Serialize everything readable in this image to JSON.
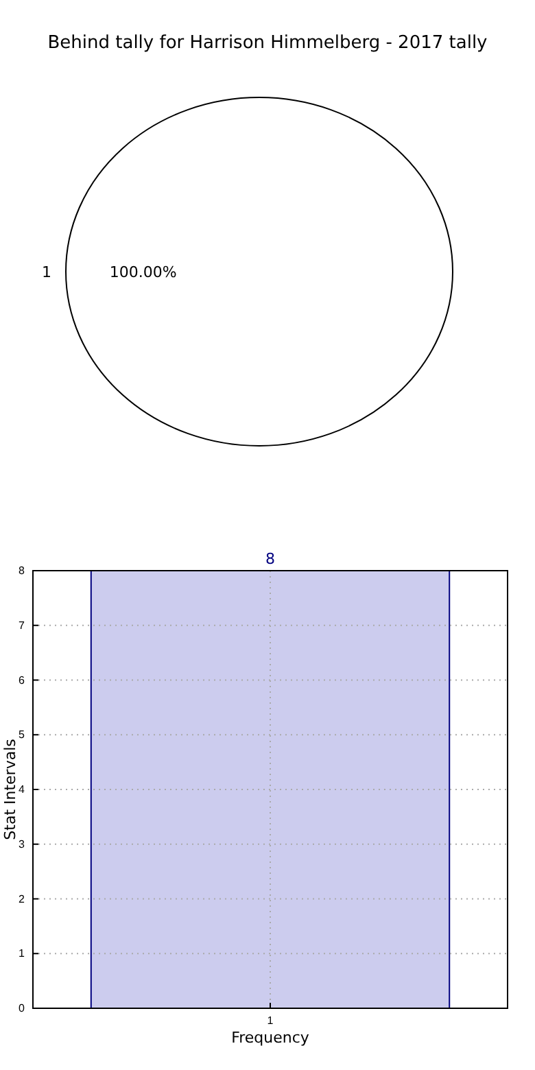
{
  "chart_data": [
    {
      "type": "pie",
      "title": "Behind tally for Harrison Himmelberg - 2017 tally",
      "categories": [
        "1"
      ],
      "values": [
        100
      ],
      "colors": [
        "#ffffff"
      ],
      "value_labels": [
        "100.00%"
      ]
    },
    {
      "type": "bar",
      "categories": [
        "1"
      ],
      "values": [
        8
      ],
      "color": "#ccccee",
      "xlabel": "Frequency",
      "ylabel": "Stat Intervals",
      "ylim": [
        0,
        8
      ],
      "yticks": [
        0,
        1,
        2,
        3,
        4,
        5,
        6,
        7,
        8
      ],
      "grid": true,
      "data_labels": true
    }
  ]
}
